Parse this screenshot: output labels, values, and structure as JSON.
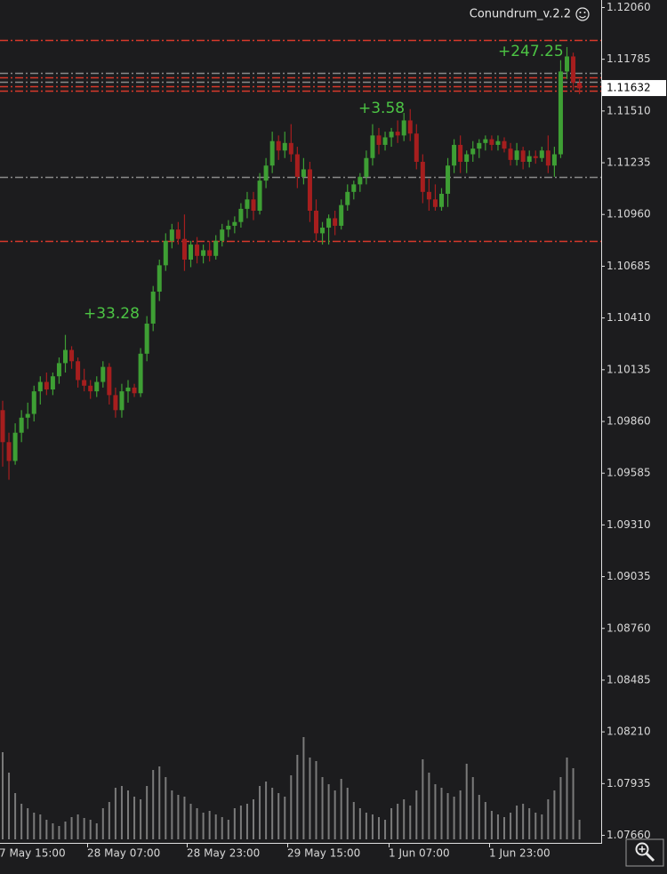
{
  "chart_data": {
    "type": "candlestick",
    "title": "Conundrum_v.2.2",
    "open": [
      1.0992,
      1.0975,
      1.0965,
      1.098,
      1.0988,
      1.099,
      1.1002,
      1.1007,
      1.1003,
      1.101,
      1.1017,
      1.1024,
      1.1018,
      1.1008,
      1.1005,
      1.1002,
      1.1007,
      1.1015,
      1.1,
      1.0992,
      1.1002,
      1.1004,
      1.1001,
      1.1022,
      1.1038,
      1.1055,
      1.1069,
      1.1082,
      1.1088,
      1.1083,
      1.1072,
      1.108,
      1.1074,
      1.1077,
      1.1074,
      1.1082,
      1.1088,
      1.109,
      1.1092,
      1.1099,
      1.1104,
      1.1098,
      1.1114,
      1.1122,
      1.1135,
      1.113,
      1.1134,
      1.1128,
      1.1116,
      1.112,
      1.1098,
      1.1086,
      1.1089,
      1.1094,
      1.109,
      1.1101,
      1.1108,
      1.1112,
      1.1116,
      1.1126,
      1.1138,
      1.1133,
      1.1137,
      1.114,
      1.1138,
      1.1146,
      1.1139,
      1.1124,
      1.1108,
      1.1104,
      1.11,
      1.1107,
      1.1122,
      1.1133,
      1.1124,
      1.1128,
      1.1131,
      1.1134,
      1.1136,
      1.1133,
      1.1135,
      1.1131,
      1.1125,
      1.113,
      1.1124,
      1.1127,
      1.1126,
      1.113,
      1.1122,
      1.1128,
      1.1172,
      1.118,
      1.1166
    ],
    "high": [
      1.0997,
      1.098,
      1.0985,
      1.0992,
      1.0996,
      1.1005,
      1.101,
      1.1012,
      1.1012,
      1.102,
      1.1032,
      1.1026,
      1.102,
      1.1014,
      1.1008,
      1.101,
      1.1018,
      1.1017,
      1.1004,
      1.1006,
      1.1008,
      1.1006,
      1.1025,
      1.1042,
      1.1058,
      1.1072,
      1.1086,
      1.1091,
      1.1092,
      1.1096,
      1.1082,
      1.1084,
      1.108,
      1.1082,
      1.1085,
      1.1091,
      1.1093,
      1.1095,
      1.1102,
      1.1108,
      1.1108,
      1.1118,
      1.1126,
      1.114,
      1.1138,
      1.114,
      1.1144,
      1.1132,
      1.1126,
      1.1124,
      1.1104,
      1.1092,
      1.1096,
      1.1098,
      1.1104,
      1.1112,
      1.1114,
      1.1118,
      1.113,
      1.1144,
      1.1142,
      1.114,
      1.1142,
      1.1146,
      1.115,
      1.1152,
      1.1144,
      1.1128,
      1.1115,
      1.1112,
      1.111,
      1.1126,
      1.1136,
      1.1138,
      1.113,
      1.1135,
      1.1136,
      1.1138,
      1.1138,
      1.1138,
      1.1137,
      1.1134,
      1.1134,
      1.1132,
      1.113,
      1.113,
      1.1132,
      1.1138,
      1.1132,
      1.1178,
      1.1185,
      1.1182,
      1.1168
    ],
    "low": [
      1.0962,
      1.0955,
      1.0963,
      1.0975,
      1.0982,
      1.0986,
      1.0995,
      1.1,
      1.1,
      1.1006,
      1.1012,
      1.1014,
      1.1004,
      1.1002,
      1.0998,
      1.0999,
      1.1004,
      1.0995,
      1.0988,
      1.0988,
      1.0996,
      1.0999,
      1.0999,
      1.1018,
      1.1034,
      1.105,
      1.1066,
      1.1078,
      1.108,
      1.1066,
      1.1068,
      1.107,
      1.107,
      1.1071,
      1.1072,
      1.1079,
      1.1084,
      1.1086,
      1.1089,
      1.1094,
      1.1093,
      1.1096,
      1.111,
      1.1118,
      1.1125,
      1.1126,
      1.1124,
      1.111,
      1.1112,
      1.1092,
      1.1082,
      1.108,
      1.108,
      1.1085,
      1.1088,
      1.1098,
      1.1104,
      1.1108,
      1.1112,
      1.1122,
      1.1128,
      1.113,
      1.1132,
      1.1134,
      1.1135,
      1.1135,
      1.112,
      1.1102,
      1.1098,
      1.1098,
      1.1098,
      1.11,
      1.1118,
      1.1118,
      1.1118,
      1.1124,
      1.1126,
      1.113,
      1.113,
      1.113,
      1.1129,
      1.1122,
      1.1122,
      1.112,
      1.1121,
      1.1123,
      1.1124,
      1.1118,
      1.1116,
      1.1126,
      1.1168,
      1.1162,
      1.116
    ],
    "close": [
      1.0975,
      1.0965,
      1.098,
      1.0988,
      1.099,
      1.1002,
      1.1007,
      1.1003,
      1.101,
      1.1017,
      1.1024,
      1.1018,
      1.1008,
      1.1005,
      1.1002,
      1.1007,
      1.1015,
      1.1,
      1.0992,
      1.1002,
      1.1004,
      1.1001,
      1.1022,
      1.1038,
      1.1055,
      1.1069,
      1.1082,
      1.1088,
      1.1083,
      1.1072,
      1.108,
      1.1074,
      1.1077,
      1.1074,
      1.1082,
      1.1088,
      1.109,
      1.1092,
      1.1099,
      1.1104,
      1.1098,
      1.1114,
      1.1122,
      1.1135,
      1.113,
      1.1134,
      1.1128,
      1.1116,
      1.112,
      1.1098,
      1.1086,
      1.1089,
      1.1094,
      1.109,
      1.1101,
      1.1108,
      1.1112,
      1.1116,
      1.1126,
      1.1138,
      1.1133,
      1.1137,
      1.114,
      1.1138,
      1.1146,
      1.1139,
      1.1124,
      1.1108,
      1.1104,
      1.11,
      1.1107,
      1.1122,
      1.1133,
      1.1124,
      1.1128,
      1.1131,
      1.1134,
      1.1136,
      1.1133,
      1.1135,
      1.1131,
      1.1125,
      1.113,
      1.1124,
      1.1127,
      1.1126,
      1.113,
      1.1122,
      1.1128,
      1.1172,
      1.118,
      1.1166,
      1.1163
    ],
    "volume": [
      98,
      75,
      52,
      40,
      35,
      30,
      28,
      22,
      18,
      15,
      20,
      25,
      28,
      24,
      22,
      18,
      35,
      42,
      58,
      60,
      55,
      48,
      45,
      60,
      78,
      82,
      70,
      55,
      50,
      48,
      40,
      35,
      30,
      32,
      28,
      25,
      22,
      35,
      38,
      40,
      45,
      60,
      65,
      58,
      52,
      48,
      72,
      95,
      115,
      92,
      88,
      70,
      62,
      55,
      68,
      58,
      42,
      35,
      30,
      28,
      25,
      22,
      35,
      40,
      45,
      38,
      55,
      90,
      75,
      62,
      58,
      52,
      48,
      55,
      85,
      70,
      50,
      42,
      32,
      28,
      25,
      30,
      38,
      40,
      35,
      30,
      28,
      45,
      55,
      70,
      92,
      80,
      22
    ],
    "up_color": "#3e9f34",
    "down_color": "#a61e1e",
    "volume_color": "#7a7a7a",
    "ylim": [
      1.0762,
      1.121
    ],
    "yticks": [
      {
        "value": 1.1206,
        "label": "1.12060"
      },
      1.11785,
      {
        "value": 1.1151,
        "label": "1.11510"
      },
      1.11235,
      {
        "value": 1.1096,
        "label": "1.10960"
      },
      1.10685,
      {
        "value": 1.1041,
        "label": "1.10410"
      },
      1.10135,
      {
        "value": 1.0986,
        "label": "1.09860"
      },
      1.09585,
      {
        "value": 1.0931,
        "label": "1.09310"
      },
      1.09035,
      {
        "value": 1.0876,
        "label": "1.08760"
      },
      1.08485,
      {
        "value": 1.0821,
        "label": "1.08210"
      },
      1.07935,
      {
        "value": 1.0766,
        "label": "1.07660"
      }
    ],
    "x_labels": [
      "7 May 15:00",
      "28 May 07:00",
      "28 May 23:00",
      "29 May 15:00",
      "1 Jun 07:00",
      "1 Jun 23:00"
    ],
    "current_price": 1.11632,
    "levels": [
      {
        "value": 1.11886,
        "color": "#d8392b"
      },
      {
        "value": 1.11711,
        "color": "#8a8a8a"
      },
      {
        "value": 1.11687,
        "color": "#d8392b"
      },
      {
        "value": 1.11663,
        "color": "#8a8a8a"
      },
      {
        "value": 1.1164,
        "color": "#d8392b"
      },
      {
        "value": 1.11616,
        "color": "#d8392b"
      },
      {
        "value": 1.11158,
        "color": "#8a8a8a"
      },
      {
        "value": 1.10818,
        "color": "#d8392b"
      }
    ],
    "annotations": [
      "+247.25",
      "+3.58",
      "+33.28"
    ],
    "annotation_color": "#4cc444"
  }
}
